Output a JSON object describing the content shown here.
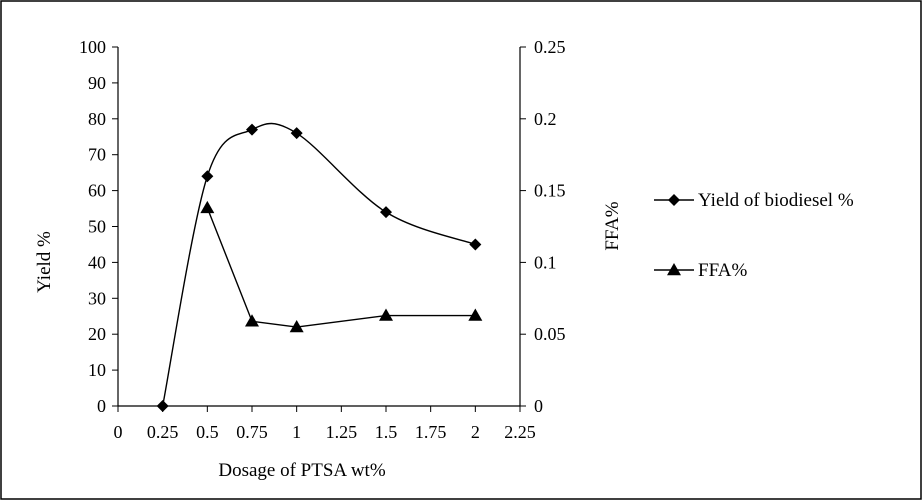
{
  "chart_data": {
    "type": "line",
    "title": "",
    "xlabel": "Dosage of PTSA wt%",
    "ylabel_left": "Yield %",
    "ylabel_right": "FFA%",
    "x_ticks": [
      "0",
      "0.25",
      "0.5",
      "0.75",
      "1",
      "1.25",
      "1.5",
      "1.75",
      "2",
      "2.25"
    ],
    "y_left_ticks": [
      "0",
      "10",
      "20",
      "30",
      "40",
      "50",
      "60",
      "70",
      "80",
      "90",
      "100"
    ],
    "y_right_ticks": [
      "0",
      "0.05",
      "0.1",
      "0.15",
      "0.2",
      "0.25"
    ],
    "xlim": [
      0,
      2.25
    ],
    "ylim_left": [
      0,
      100
    ],
    "ylim_right": [
      0,
      0.25
    ],
    "grid": false,
    "legend_position": "right",
    "series": [
      {
        "name": "Yield of biodiesel %",
        "axis": "left",
        "marker": "diamond",
        "smooth": true,
        "x": [
          0.25,
          0.5,
          0.75,
          1,
          1.5,
          2
        ],
        "values": [
          0,
          64,
          77,
          76,
          54,
          45
        ]
      },
      {
        "name": "FFA%",
        "axis": "right",
        "marker": "triangle",
        "smooth": false,
        "x": [
          0.5,
          0.75,
          1,
          1.5,
          2
        ],
        "values": [
          0.138,
          0.059,
          0.055,
          0.063,
          0.063
        ]
      }
    ]
  },
  "colors": {
    "line": "#000000",
    "frame": "#000000",
    "background": "#ffffff"
  }
}
